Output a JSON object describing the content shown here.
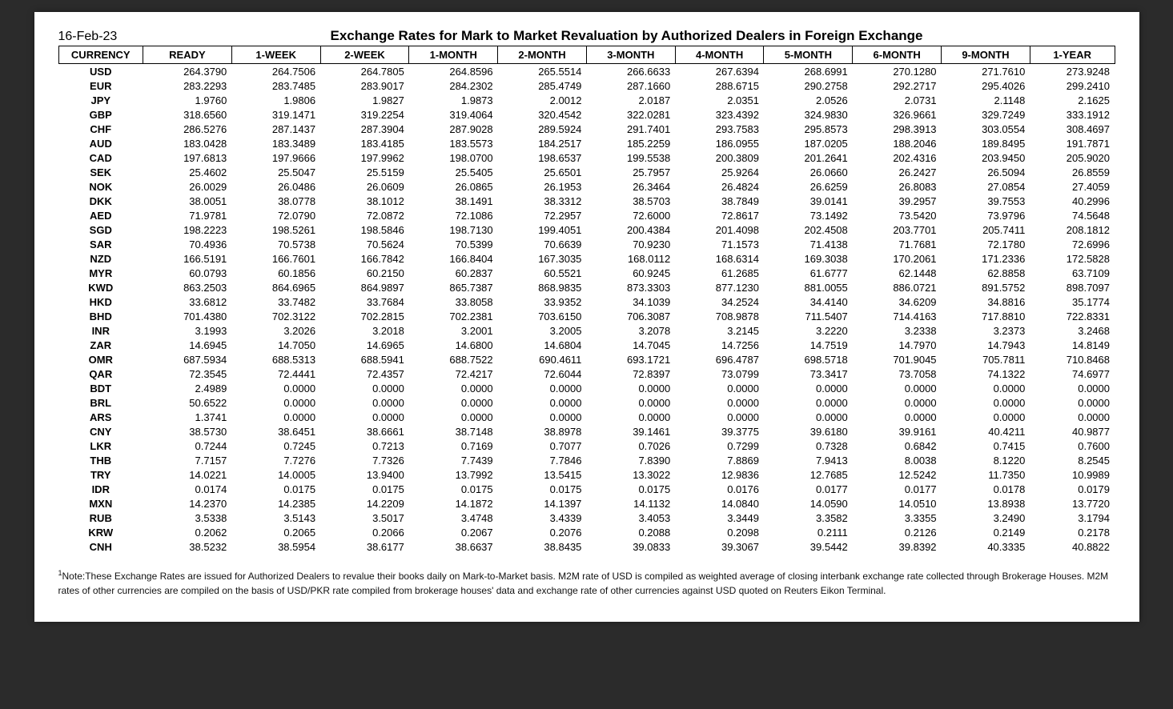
{
  "date": "16-Feb-23",
  "title": "Exchange Rates for Mark to Market Revaluation by Authorized Dealers in Foreign Exchange",
  "columns": [
    "CURRENCY",
    "READY",
    "1-WEEK",
    "2-WEEK",
    "1-MONTH",
    "2-MONTH",
    "3-MONTH",
    "4-MONTH",
    "5-MONTH",
    "6-MONTH",
    "9-MONTH",
    "1-YEAR"
  ],
  "rows": [
    [
      "USD",
      "264.3790",
      "264.7506",
      "264.7805",
      "264.8596",
      "265.5514",
      "266.6633",
      "267.6394",
      "268.6991",
      "270.1280",
      "271.7610",
      "273.9248"
    ],
    [
      "EUR",
      "283.2293",
      "283.7485",
      "283.9017",
      "284.2302",
      "285.4749",
      "287.1660",
      "288.6715",
      "290.2758",
      "292.2717",
      "295.4026",
      "299.2410"
    ],
    [
      "JPY",
      "1.9760",
      "1.9806",
      "1.9827",
      "1.9873",
      "2.0012",
      "2.0187",
      "2.0351",
      "2.0526",
      "2.0731",
      "2.1148",
      "2.1625"
    ],
    [
      "GBP",
      "318.6560",
      "319.1471",
      "319.2254",
      "319.4064",
      "320.4542",
      "322.0281",
      "323.4392",
      "324.9830",
      "326.9661",
      "329.7249",
      "333.1912"
    ],
    [
      "CHF",
      "286.5276",
      "287.1437",
      "287.3904",
      "287.9028",
      "289.5924",
      "291.7401",
      "293.7583",
      "295.8573",
      "298.3913",
      "303.0554",
      "308.4697"
    ],
    [
      "AUD",
      "183.0428",
      "183.3489",
      "183.4185",
      "183.5573",
      "184.2517",
      "185.2259",
      "186.0955",
      "187.0205",
      "188.2046",
      "189.8495",
      "191.7871"
    ],
    [
      "CAD",
      "197.6813",
      "197.9666",
      "197.9962",
      "198.0700",
      "198.6537",
      "199.5538",
      "200.3809",
      "201.2641",
      "202.4316",
      "203.9450",
      "205.9020"
    ],
    [
      "SEK",
      "25.4602",
      "25.5047",
      "25.5159",
      "25.5405",
      "25.6501",
      "25.7957",
      "25.9264",
      "26.0660",
      "26.2427",
      "26.5094",
      "26.8559"
    ],
    [
      "NOK",
      "26.0029",
      "26.0486",
      "26.0609",
      "26.0865",
      "26.1953",
      "26.3464",
      "26.4824",
      "26.6259",
      "26.8083",
      "27.0854",
      "27.4059"
    ],
    [
      "DKK",
      "38.0051",
      "38.0778",
      "38.1012",
      "38.1491",
      "38.3312",
      "38.5703",
      "38.7849",
      "39.0141",
      "39.2957",
      "39.7553",
      "40.2996"
    ],
    [
      "AED",
      "71.9781",
      "72.0790",
      "72.0872",
      "72.1086",
      "72.2957",
      "72.6000",
      "72.8617",
      "73.1492",
      "73.5420",
      "73.9796",
      "74.5648"
    ],
    [
      "SGD",
      "198.2223",
      "198.5261",
      "198.5846",
      "198.7130",
      "199.4051",
      "200.4384",
      "201.4098",
      "202.4508",
      "203.7701",
      "205.7411",
      "208.1812"
    ],
    [
      "SAR",
      "70.4936",
      "70.5738",
      "70.5624",
      "70.5399",
      "70.6639",
      "70.9230",
      "71.1573",
      "71.4138",
      "71.7681",
      "72.1780",
      "72.6996"
    ],
    [
      "NZD",
      "166.5191",
      "166.7601",
      "166.7842",
      "166.8404",
      "167.3035",
      "168.0112",
      "168.6314",
      "169.3038",
      "170.2061",
      "171.2336",
      "172.5828"
    ],
    [
      "MYR",
      "60.0793",
      "60.1856",
      "60.2150",
      "60.2837",
      "60.5521",
      "60.9245",
      "61.2685",
      "61.6777",
      "62.1448",
      "62.8858",
      "63.7109"
    ],
    [
      "KWD",
      "863.2503",
      "864.6965",
      "864.9897",
      "865.7387",
      "868.9835",
      "873.3303",
      "877.1230",
      "881.0055",
      "886.0721",
      "891.5752",
      "898.7097"
    ],
    [
      "HKD",
      "33.6812",
      "33.7482",
      "33.7684",
      "33.8058",
      "33.9352",
      "34.1039",
      "34.2524",
      "34.4140",
      "34.6209",
      "34.8816",
      "35.1774"
    ],
    [
      "BHD",
      "701.4380",
      "702.3122",
      "702.2815",
      "702.2381",
      "703.6150",
      "706.3087",
      "708.9878",
      "711.5407",
      "714.4163",
      "717.8810",
      "722.8331"
    ],
    [
      "INR",
      "3.1993",
      "3.2026",
      "3.2018",
      "3.2001",
      "3.2005",
      "3.2078",
      "3.2145",
      "3.2220",
      "3.2338",
      "3.2373",
      "3.2468"
    ],
    [
      "ZAR",
      "14.6945",
      "14.7050",
      "14.6965",
      "14.6800",
      "14.6804",
      "14.7045",
      "14.7256",
      "14.7519",
      "14.7970",
      "14.7943",
      "14.8149"
    ],
    [
      "OMR",
      "687.5934",
      "688.5313",
      "688.5941",
      "688.7522",
      "690.4611",
      "693.1721",
      "696.4787",
      "698.5718",
      "701.9045",
      "705.7811",
      "710.8468"
    ],
    [
      "QAR",
      "72.3545",
      "72.4441",
      "72.4357",
      "72.4217",
      "72.6044",
      "72.8397",
      "73.0799",
      "73.3417",
      "73.7058",
      "74.1322",
      "74.6977"
    ],
    [
      "BDT",
      "2.4989",
      "0.0000",
      "0.0000",
      "0.0000",
      "0.0000",
      "0.0000",
      "0.0000",
      "0.0000",
      "0.0000",
      "0.0000",
      "0.0000"
    ],
    [
      "BRL",
      "50.6522",
      "0.0000",
      "0.0000",
      "0.0000",
      "0.0000",
      "0.0000",
      "0.0000",
      "0.0000",
      "0.0000",
      "0.0000",
      "0.0000"
    ],
    [
      "ARS",
      "1.3741",
      "0.0000",
      "0.0000",
      "0.0000",
      "0.0000",
      "0.0000",
      "0.0000",
      "0.0000",
      "0.0000",
      "0.0000",
      "0.0000"
    ],
    [
      "CNY",
      "38.5730",
      "38.6451",
      "38.6661",
      "38.7148",
      "38.8978",
      "39.1461",
      "39.3775",
      "39.6180",
      "39.9161",
      "40.4211",
      "40.9877"
    ],
    [
      "LKR",
      "0.7244",
      "0.7245",
      "0.7213",
      "0.7169",
      "0.7077",
      "0.7026",
      "0.7299",
      "0.7328",
      "0.6842",
      "0.7415",
      "0.7600"
    ],
    [
      "THB",
      "7.7157",
      "7.7276",
      "7.7326",
      "7.7439",
      "7.7846",
      "7.8390",
      "7.8869",
      "7.9413",
      "8.0038",
      "8.1220",
      "8.2545"
    ],
    [
      "TRY",
      "14.0221",
      "14.0005",
      "13.9400",
      "13.7992",
      "13.5415",
      "13.3022",
      "12.9836",
      "12.7685",
      "12.5242",
      "11.7350",
      "10.9989"
    ],
    [
      "IDR",
      "0.0174",
      "0.0175",
      "0.0175",
      "0.0175",
      "0.0175",
      "0.0175",
      "0.0176",
      "0.0177",
      "0.0177",
      "0.0178",
      "0.0179"
    ],
    [
      "MXN",
      "14.2370",
      "14.2385",
      "14.2209",
      "14.1872",
      "14.1397",
      "14.1132",
      "14.0840",
      "14.0590",
      "14.0510",
      "13.8938",
      "13.7720"
    ],
    [
      "RUB",
      "3.5338",
      "3.5143",
      "3.5017",
      "3.4748",
      "3.4339",
      "3.4053",
      "3.3449",
      "3.3582",
      "3.3355",
      "3.2490",
      "3.1794"
    ],
    [
      "KRW",
      "0.2062",
      "0.2065",
      "0.2066",
      "0.2067",
      "0.2076",
      "0.2088",
      "0.2098",
      "0.2111",
      "0.2126",
      "0.2149",
      "0.2178"
    ],
    [
      "CNH",
      "38.5232",
      "38.5954",
      "38.6177",
      "38.6637",
      "38.8435",
      "39.0833",
      "39.3067",
      "39.5442",
      "39.8392",
      "40.3335",
      "40.8822"
    ]
  ],
  "note": "Note:These Exchange Rates are issued for Authorized Dealers to revalue their books daily on Mark-to-Market basis. M2M rate of USD is compiled as weighted average of closing interbank exchange rate collected through Brokerage Houses. M2M rates of other currencies are compiled on the basis of USD/PKR rate compiled from brokerage houses' data and exchange rate of other currencies against USD quoted on Reuters Eikon Terminal.",
  "col_widths_pct": [
    8,
    8.4,
    8.4,
    8.4,
    8.4,
    8.4,
    8.4,
    8.4,
    8.4,
    8.4,
    8.4,
    8.4
  ]
}
